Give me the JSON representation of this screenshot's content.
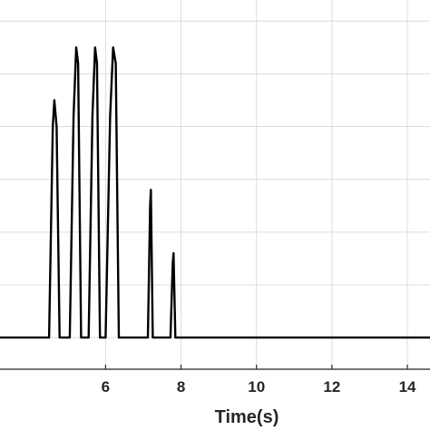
{
  "chart_data": {
    "type": "line",
    "xlabel": "Time(s)",
    "ylabel": "",
    "title": "",
    "xlim": [
      3.2,
      14.6
    ],
    "ylim": [
      -0.6,
      6.4
    ],
    "grid": true,
    "x_ticks": [
      6,
      8,
      10,
      12,
      14
    ],
    "x_tick_labels": [
      "6",
      "8",
      "10",
      "12",
      "14"
    ],
    "y_grid_values": [
      0,
      1,
      2,
      3,
      4,
      5,
      6
    ],
    "series": [
      {
        "color": "#000000",
        "x": [
          3.2,
          4.5,
          4.6,
          4.64,
          4.7,
          4.78,
          5.05,
          5.15,
          5.22,
          5.27,
          5.35,
          5.55,
          5.65,
          5.72,
          5.77,
          5.85,
          6.0,
          6.12,
          6.2,
          6.27,
          6.35,
          7.12,
          7.18,
          7.2,
          7.25,
          7.72,
          7.78,
          7.8,
          7.85,
          14.6
        ],
        "y": [
          0,
          0,
          4.0,
          4.5,
          4.0,
          0,
          0,
          4.2,
          5.5,
          5.2,
          0,
          0,
          4.2,
          5.5,
          5.2,
          0,
          0,
          4.2,
          5.5,
          5.2,
          0,
          0,
          2.5,
          2.8,
          0,
          0,
          1.4,
          1.6,
          0,
          0
        ]
      }
    ]
  }
}
